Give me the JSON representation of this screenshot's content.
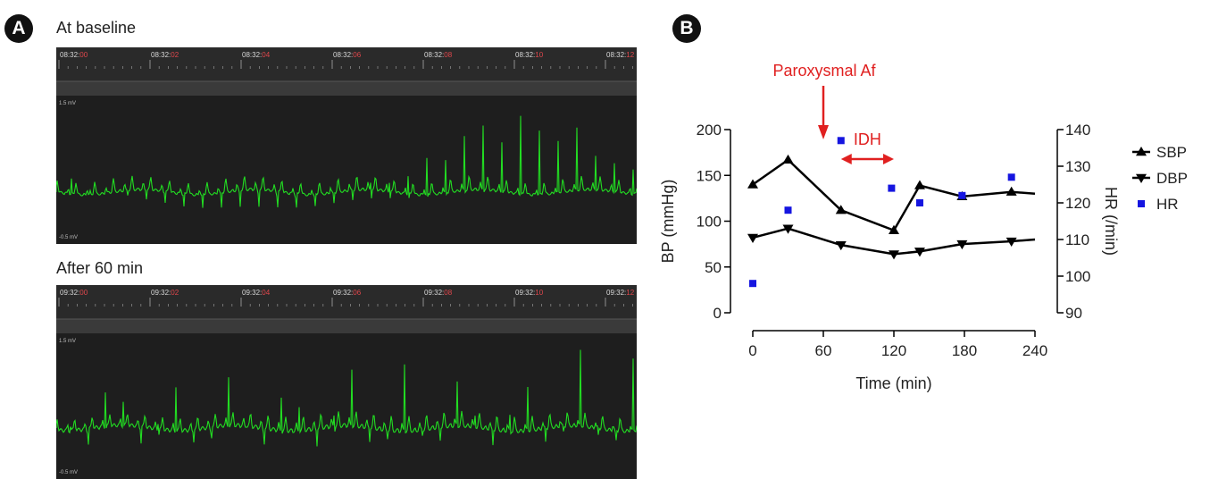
{
  "panelA": {
    "badge": "A",
    "strips": [
      {
        "label": "At baseline",
        "time_prefix": "08:32:",
        "time_seconds": [
          "00",
          "02",
          "04",
          "06",
          "08",
          "10",
          "12"
        ],
        "scale_top": "1.5 mV",
        "scale_bottom": "-0.5 mV",
        "beats": 31
      },
      {
        "label": "After 60 min",
        "time_prefix": "09:32:",
        "time_seconds": [
          "00",
          "02",
          "04",
          "06",
          "08",
          "10",
          "12"
        ],
        "scale_top": "1.5 mV",
        "scale_bottom": "-0.5 mV",
        "beats": 33
      }
    ]
  },
  "panelB": {
    "badge": "B",
    "annotation_af": "Paroxysmal Af",
    "annotation_idh": "IDH"
  },
  "colors": {
    "ecg_trace": "#22dd22",
    "ecg_background": "#1e1e1e",
    "time_seconds_red": "#e0474c",
    "annotation_red": "#e02020",
    "hr_marker": "#1515e0",
    "bp_line": "#000000"
  },
  "chart_data": {
    "type": "line",
    "xlabel": "Time (min)",
    "ylabel_left": "BP (mmHg)",
    "ylabel_right": "HR (/min)",
    "xlim": [
      0,
      240
    ],
    "xticks": [
      0,
      60,
      120,
      180,
      240
    ],
    "ylim_left": [
      0,
      200
    ],
    "yticks_left": [
      0,
      50,
      100,
      150,
      200
    ],
    "ylim_right": [
      90,
      140
    ],
    "yticks_right": [
      90,
      100,
      110,
      120,
      130,
      140
    ],
    "legend_position": "right",
    "series": [
      {
        "name": "SBP",
        "axis": "left",
        "marker": "triangle-up",
        "x": [
          0,
          30,
          75,
          120,
          142,
          178,
          220,
          240
        ],
        "y": [
          140,
          167,
          112,
          90,
          139,
          127,
          132,
          130
        ]
      },
      {
        "name": "DBP",
        "axis": "left",
        "marker": "triangle-down",
        "x": [
          0,
          30,
          75,
          120,
          142,
          178,
          220,
          240
        ],
        "y": [
          82,
          92,
          74,
          64,
          67,
          75,
          78,
          80
        ]
      },
      {
        "name": "HR",
        "axis": "right",
        "marker": "square",
        "x": [
          0,
          30,
          75,
          118,
          142,
          178,
          220
        ],
        "y": [
          98,
          118,
          137,
          124,
          120,
          122,
          127
        ]
      }
    ],
    "annotations": [
      {
        "text": "Paroxysmal Af",
        "type": "arrow-down",
        "x": 60
      },
      {
        "text": "IDH",
        "type": "double-arrow",
        "x_range": [
          75,
          120
        ]
      }
    ]
  }
}
